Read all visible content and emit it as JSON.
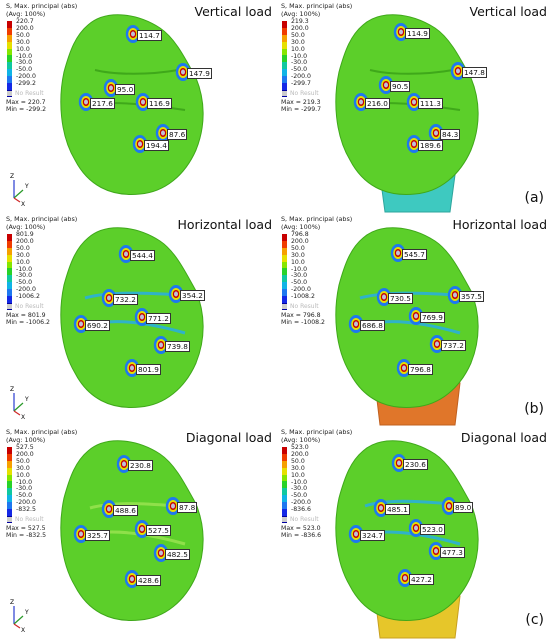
{
  "legend_title_line1": "S, Max. principal (abs)",
  "legend_title_line2": "(Avg: 100%)",
  "no_result_label": "No Result",
  "legend_colors": [
    "#c80000",
    "#f03c00",
    "#f6a000",
    "#e6e000",
    "#86e600",
    "#28d228",
    "#10c8a0",
    "#10b4e6",
    "#1e78f0",
    "#1428e6",
    "#0000a0"
  ],
  "panels": [
    {
      "title": "Vertical load",
      "legend": [
        "220.7",
        "200.0",
        "50.0",
        "30.0",
        "10.0",
        "-10.0",
        "-30.0",
        "-50.0",
        "-200.0",
        "-299.2"
      ],
      "max": "Max = 220.7",
      "min": "Min = -299.2",
      "labels": [
        "114.7",
        "147.9",
        "95.0",
        "116.9",
        "217.6",
        "87.6",
        "194.4"
      ]
    },
    {
      "title": "Vertical load",
      "legend": [
        "219.3",
        "200.0",
        "50.0",
        "30.0",
        "10.0",
        "-10.0",
        "-30.0",
        "-50.0",
        "-200.0",
        "-299.7"
      ],
      "max": "Max = 219.3",
      "min": "Min = -299.7",
      "labels": [
        "114.9",
        "147.8",
        "90.5",
        "111.3",
        "216.0",
        "84.3",
        "189.6"
      ]
    },
    {
      "title": "Horizontal load",
      "legend": [
        "801.9",
        "200.0",
        "50.0",
        "30.0",
        "10.0",
        "-10.0",
        "-30.0",
        "-50.0",
        "-200.0",
        "-1006.2"
      ],
      "max": "Max = 801.9",
      "min": "Min = -1006.2",
      "labels": [
        "544.4",
        "354.2",
        "732.2",
        "771.2",
        "690.2",
        "739.8",
        "801.9"
      ]
    },
    {
      "title": "Horizontal load",
      "legend": [
        "796.8",
        "200.0",
        "50.0",
        "30.0",
        "10.0",
        "-10.0",
        "-30.0",
        "-50.0",
        "-200.0",
        "-1008.2"
      ],
      "max": "Max = 796.8",
      "min": "Min = -1008.2",
      "labels": [
        "545.7",
        "357.5",
        "730.5",
        "769.9",
        "686.8",
        "737.2",
        "796.8"
      ]
    },
    {
      "title": "Diagonal load",
      "legend": [
        "527.5",
        "200.0",
        "50.0",
        "30.0",
        "10.0",
        "-10.0",
        "-30.0",
        "-50.0",
        "-200.0",
        "-832.5"
      ],
      "max": "Max = 527.5",
      "min": "Min = -832.5",
      "labels": [
        "230.8",
        "87.8",
        "488.6",
        "527.5",
        "325.7",
        "482.5",
        "428.6"
      ]
    },
    {
      "title": "Diagonal load",
      "legend": [
        "523.0",
        "200.0",
        "50.0",
        "30.0",
        "10.0",
        "-10.0",
        "-30.0",
        "-50.0",
        "-200.0",
        "-836.6"
      ],
      "max": "Max = 523.0",
      "min": "Min = -836.6",
      "labels": [
        "230.6",
        "89.0",
        "485.1",
        "523.0",
        "324.7",
        "477.3",
        "427.2"
      ]
    }
  ],
  "subfigure_labels": [
    "(a)",
    "(b)",
    "(c)"
  ],
  "axis_letters": {
    "z": "Z",
    "y": "Y",
    "x": "X"
  }
}
